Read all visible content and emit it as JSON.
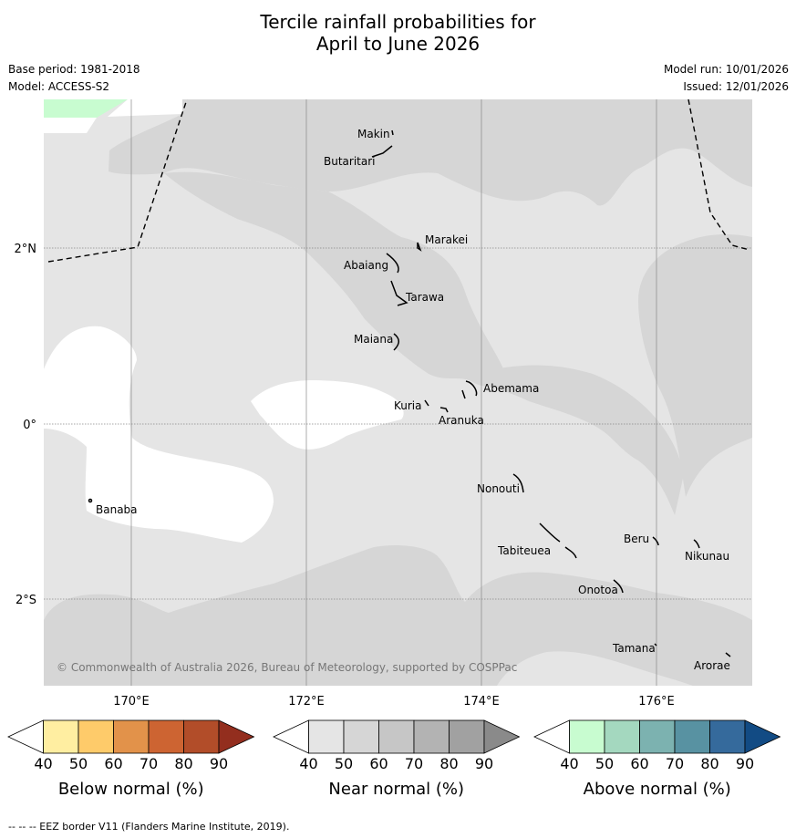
{
  "title_line1": "Tercile rainfall probabilities for",
  "title_line2": "April to June 2026",
  "base_period": "Base period: 1981-2018",
  "model": "Model: ACCESS-S2",
  "model_run": "Model run: 10/01/2026",
  "issued": "Issued: 12/01/2026",
  "lat_labels": [
    "2°N",
    "0°",
    "2°S"
  ],
  "lon_labels": [
    "170°E",
    "172°E",
    "174°E",
    "176°E"
  ],
  "places": [
    "Makin",
    "Butaritari",
    "Marakei",
    "Abaiang",
    "Tarawa",
    "Maiana",
    "Abemama",
    "Kuria",
    "Aranuka",
    "Banaba",
    "Nonouti",
    "Tabiteuea",
    "Beru",
    "Nikunau",
    "Onotoa",
    "Tamana",
    "Arorae"
  ],
  "copyright": "© Commonwealth of Australia 2026, Bureau of Meteorology, supported by COSPPac",
  "colorbars": [
    {
      "title": "Below normal (%)",
      "ticks": [
        "40",
        "50",
        "60",
        "70",
        "80",
        "90"
      ],
      "colors": [
        "#ffffff",
        "#ffeea1",
        "#fecb6a",
        "#e2924a",
        "#cd6432",
        "#b24d29",
        "#932e1e"
      ]
    },
    {
      "title": "Near normal (%)",
      "ticks": [
        "40",
        "50",
        "60",
        "70",
        "80",
        "90"
      ],
      "colors": [
        "#ffffff",
        "#e5e5e5",
        "#d6d6d6",
        "#c6c6c6",
        "#b3b3b3",
        "#a1a1a1",
        "#8a8a8a"
      ]
    },
    {
      "title": "Above normal (%)",
      "ticks": [
        "40",
        "50",
        "60",
        "70",
        "80",
        "90"
      ],
      "colors": [
        "#ffffff",
        "#c8fcd0",
        "#a4d8bf",
        "#7cb2b0",
        "#5892a2",
        "#356a9c",
        "#124b84"
      ]
    }
  ],
  "footer": "--  --  -- EEZ border V11 (Flanders Marine Institute, 2019)."
}
